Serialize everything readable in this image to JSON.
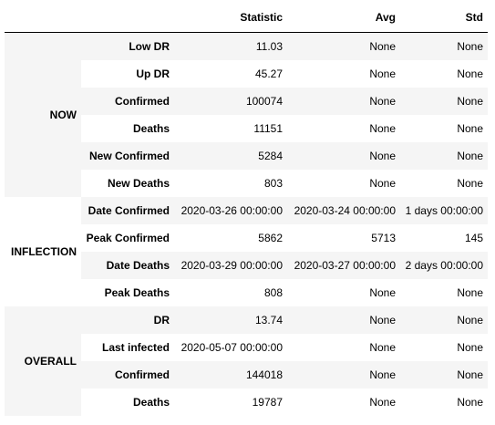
{
  "columns": {
    "index0": "",
    "index1": "",
    "statistic": "Statistic",
    "avg": "Avg",
    "std": "Std"
  },
  "groups": [
    {
      "name": "NOW",
      "rows": [
        {
          "metric": "Low DR",
          "statistic": "11.03",
          "avg": "None",
          "std": "None"
        },
        {
          "metric": "Up DR",
          "statistic": "45.27",
          "avg": "None",
          "std": "None"
        },
        {
          "metric": "Confirmed",
          "statistic": "100074",
          "avg": "None",
          "std": "None"
        },
        {
          "metric": "Deaths",
          "statistic": "11151",
          "avg": "None",
          "std": "None"
        },
        {
          "metric": "New Confirmed",
          "statistic": "5284",
          "avg": "None",
          "std": "None"
        },
        {
          "metric": "New Deaths",
          "statistic": "803",
          "avg": "None",
          "std": "None"
        }
      ]
    },
    {
      "name": "INFLECTION",
      "rows": [
        {
          "metric": "Date Confirmed",
          "statistic": "2020-03-26 00:00:00",
          "avg": "2020-03-24 00:00:00",
          "std": "1 days 00:00:00"
        },
        {
          "metric": "Peak Confirmed",
          "statistic": "5862",
          "avg": "5713",
          "std": "145"
        },
        {
          "metric": "Date Deaths",
          "statistic": "2020-03-29 00:00:00",
          "avg": "2020-03-27 00:00:00",
          "std": "2 days 00:00:00"
        },
        {
          "metric": "Peak Deaths",
          "statistic": "808",
          "avg": "None",
          "std": "None"
        }
      ]
    },
    {
      "name": "OVERALL",
      "rows": [
        {
          "metric": "DR",
          "statistic": "13.74",
          "avg": "None",
          "std": "None"
        },
        {
          "metric": "Last infected",
          "statistic": "2020-05-07 00:00:00",
          "avg": "None",
          "std": "None"
        },
        {
          "metric": "Confirmed",
          "statistic": "144018",
          "avg": "None",
          "std": "None"
        },
        {
          "metric": "Deaths",
          "statistic": "19787",
          "avg": "None",
          "std": "None"
        }
      ]
    }
  ]
}
